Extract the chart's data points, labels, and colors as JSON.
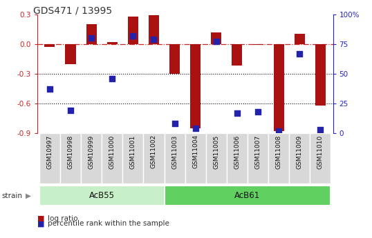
{
  "title": "GDS471 / 13995",
  "samples": [
    "GSM10997",
    "GSM10998",
    "GSM10999",
    "GSM11000",
    "GSM11001",
    "GSM11002",
    "GSM11003",
    "GSM11004",
    "GSM11005",
    "GSM11006",
    "GSM11007",
    "GSM11008",
    "GSM11009",
    "GSM11010"
  ],
  "log_ratio": [
    -0.03,
    -0.2,
    0.2,
    0.02,
    0.28,
    0.29,
    -0.3,
    -0.85,
    0.12,
    -0.22,
    -0.01,
    -0.88,
    0.1,
    -0.62
  ],
  "percentile_rank": [
    37,
    19,
    80,
    46,
    82,
    79,
    8,
    4,
    77,
    17,
    18,
    2,
    67,
    3
  ],
  "strain_groups": [
    {
      "label": "AcB55",
      "start": 0,
      "end": 5,
      "color": "#c8f0c8"
    },
    {
      "label": "AcB61",
      "start": 6,
      "end": 13,
      "color": "#60d060"
    }
  ],
  "ylim_left": [
    -0.9,
    0.3
  ],
  "ylim_right": [
    0,
    100
  ],
  "yticks_left": [
    -0.9,
    -0.6,
    -0.3,
    0.0,
    0.3
  ],
  "yticks_right": [
    0,
    25,
    50,
    75,
    100
  ],
  "hlines": [
    -0.3,
    -0.6
  ],
  "bar_color": "#aa1111",
  "dot_color": "#2222aa",
  "bar_width": 0.5,
  "dot_size": 28,
  "background_color": "#ffffff",
  "plot_bg_color": "#ffffff",
  "sample_box_color": "#d8d8d8",
  "left_axis_color": "#cc2222",
  "right_axis_color": "#2222cc",
  "strain_label": "strain",
  "legend_log_ratio": "log ratio",
  "legend_percentile": "percentile rank within the sample",
  "figsize": [
    5.38,
    3.45
  ],
  "dpi": 100
}
